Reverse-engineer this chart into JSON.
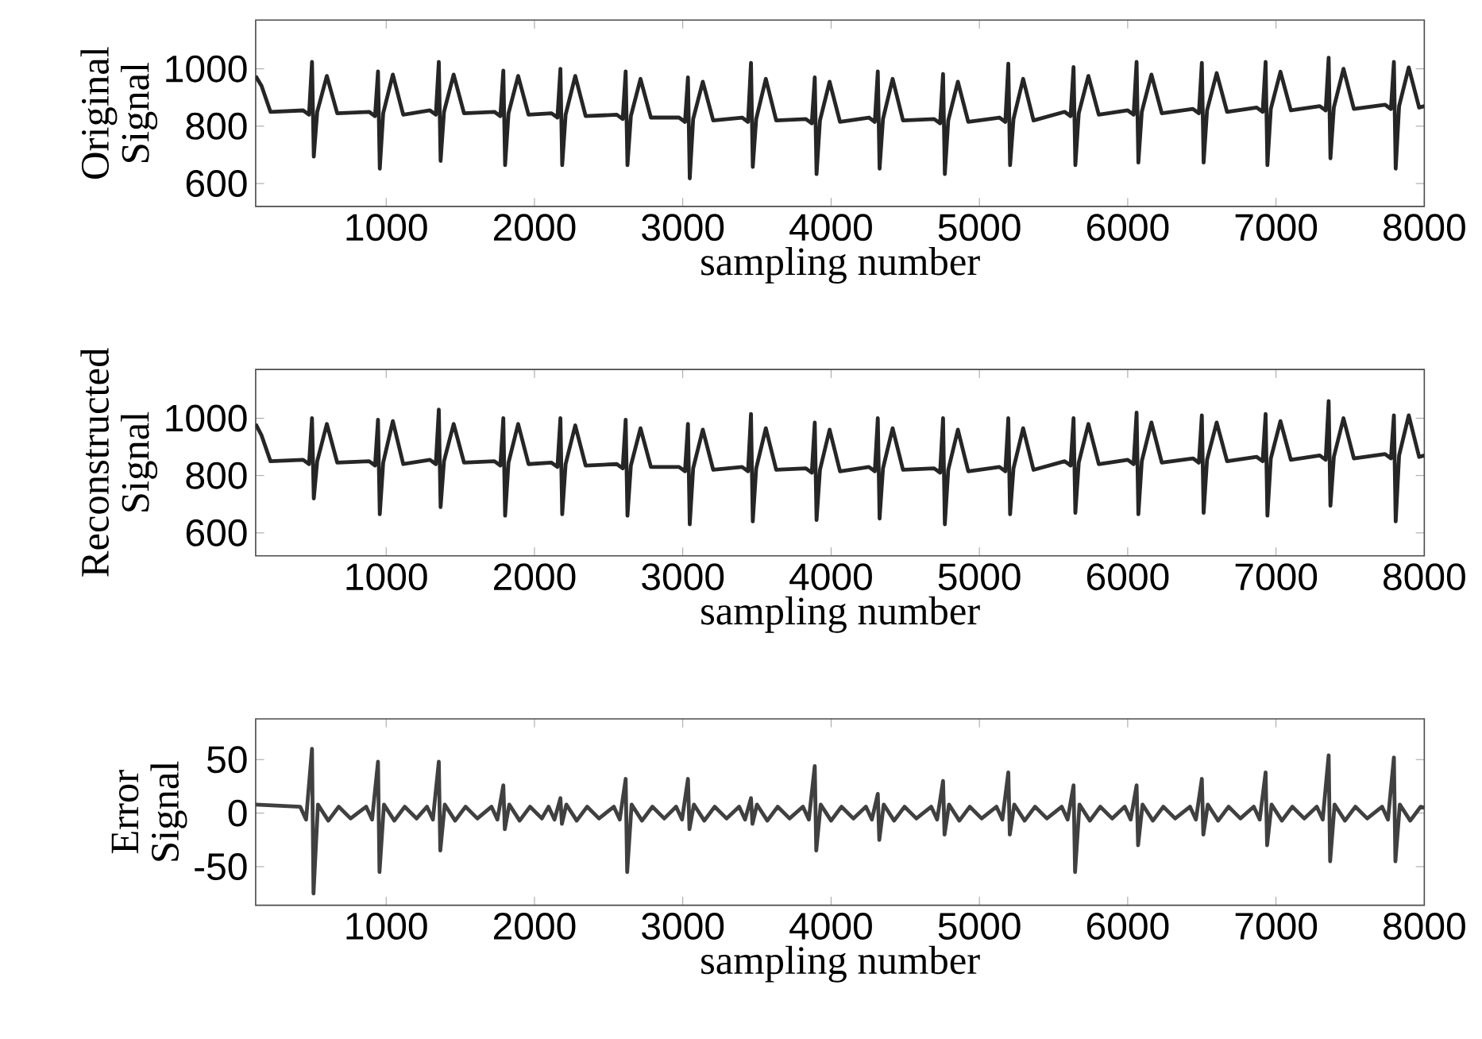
{
  "chart_data": [
    {
      "type": "line",
      "xlabel": "sampling number",
      "ylabel": "Original Signal",
      "color": "#262626",
      "xlim": [
        120,
        8000
      ],
      "ylim": [
        520,
        1170
      ],
      "xticks": [
        1000,
        2000,
        3000,
        4000,
        5000,
        6000,
        7000,
        8000
      ],
      "yticks": [
        600,
        800,
        1000
      ],
      "x": [
        120,
        160,
        220,
        440,
        480,
        500,
        512,
        535,
        600,
        670,
        885,
        925,
        945,
        957,
        980,
        1045,
        1115,
        1295,
        1335,
        1355,
        1367,
        1390,
        1455,
        1525,
        1730,
        1770,
        1790,
        1802,
        1825,
        1890,
        1960,
        2115,
        2155,
        2175,
        2187,
        2210,
        2275,
        2345,
        2555,
        2595,
        2615,
        2627,
        2650,
        2715,
        2785,
        2975,
        3015,
        3035,
        3047,
        3070,
        3135,
        3205,
        3400,
        3440,
        3460,
        3472,
        3495,
        3560,
        3630,
        3830,
        3870,
        3890,
        3902,
        3925,
        3990,
        4060,
        4255,
        4295,
        4315,
        4327,
        4350,
        4415,
        4485,
        4695,
        4735,
        4755,
        4767,
        4790,
        4855,
        4925,
        5135,
        5175,
        5195,
        5207,
        5230,
        5295,
        5365,
        5575,
        5615,
        5635,
        5647,
        5670,
        5735,
        5805,
        6000,
        6040,
        6060,
        6072,
        6095,
        6160,
        6230,
        6440,
        6480,
        6500,
        6512,
        6535,
        6600,
        6670,
        6870,
        6910,
        6930,
        6942,
        6965,
        7030,
        7100,
        7295,
        7335,
        7355,
        7367,
        7390,
        7455,
        7525,
        7735,
        7775,
        7795,
        7807,
        7830,
        7895,
        7965,
        8000
      ],
      "values": [
        975,
        940,
        850,
        855,
        840,
        1024,
        694,
        850,
        975,
        845,
        850,
        835,
        991,
        652,
        845,
        980,
        840,
        855,
        840,
        1024,
        679,
        850,
        980,
        845,
        850,
        835,
        994,
        664,
        845,
        975,
        840,
        845,
        830,
        1000,
        664,
        840,
        975,
        835,
        840,
        825,
        991,
        664,
        835,
        965,
        830,
        830,
        815,
        970,
        618,
        825,
        955,
        820,
        830,
        815,
        1021,
        658,
        825,
        965,
        820,
        825,
        810,
        970,
        633,
        820,
        955,
        815,
        830,
        815,
        991,
        652,
        825,
        965,
        820,
        825,
        810,
        982,
        633,
        820,
        955,
        815,
        830,
        815,
        1018,
        664,
        825,
        965,
        820,
        850,
        835,
        1006,
        664,
        845,
        975,
        840,
        855,
        840,
        1024,
        673,
        850,
        980,
        845,
        860,
        845,
        1021,
        673,
        855,
        985,
        850,
        865,
        850,
        1024,
        664,
        860,
        990,
        855,
        870,
        855,
        1039,
        688,
        865,
        1000,
        860,
        875,
        860,
        1024,
        652,
        870,
        1005,
        865,
        870
      ]
    },
    {
      "type": "line",
      "xlabel": "sampling number",
      "ylabel": "Reconstructed Signal",
      "color": "#262626",
      "xlim": [
        120,
        8000
      ],
      "ylim": [
        520,
        1170
      ],
      "xticks": [
        1000,
        2000,
        3000,
        4000,
        5000,
        6000,
        7000,
        8000
      ],
      "yticks": [
        600,
        800,
        1000
      ],
      "x": [
        120,
        160,
        220,
        440,
        480,
        500,
        512,
        535,
        600,
        670,
        885,
        925,
        945,
        957,
        980,
        1045,
        1115,
        1295,
        1335,
        1355,
        1367,
        1390,
        1455,
        1525,
        1730,
        1770,
        1790,
        1802,
        1825,
        1890,
        1960,
        2115,
        2155,
        2175,
        2187,
        2210,
        2275,
        2345,
        2555,
        2595,
        2615,
        2627,
        2650,
        2715,
        2785,
        2975,
        3015,
        3035,
        3047,
        3070,
        3135,
        3205,
        3400,
        3440,
        3460,
        3472,
        3495,
        3560,
        3630,
        3830,
        3870,
        3890,
        3902,
        3925,
        3990,
        4060,
        4255,
        4295,
        4315,
        4327,
        4350,
        4415,
        4485,
        4695,
        4735,
        4755,
        4767,
        4790,
        4855,
        4925,
        5135,
        5175,
        5195,
        5207,
        5230,
        5295,
        5365,
        5575,
        5615,
        5635,
        5647,
        5670,
        5735,
        5805,
        6000,
        6040,
        6060,
        6072,
        6095,
        6160,
        6230,
        6440,
        6480,
        6500,
        6512,
        6535,
        6600,
        6670,
        6870,
        6910,
        6930,
        6942,
        6965,
        7030,
        7100,
        7295,
        7335,
        7355,
        7367,
        7390,
        7455,
        7525,
        7735,
        7775,
        7795,
        7807,
        7830,
        7895,
        7965,
        8000
      ],
      "values": [
        980,
        940,
        850,
        855,
        840,
        1000,
        720,
        850,
        980,
        845,
        850,
        835,
        995,
        665,
        845,
        990,
        840,
        855,
        840,
        1030,
        690,
        850,
        980,
        845,
        850,
        835,
        1000,
        660,
        845,
        980,
        840,
        845,
        830,
        1000,
        665,
        840,
        975,
        835,
        840,
        825,
        995,
        660,
        835,
        965,
        830,
        830,
        815,
        980,
        630,
        825,
        960,
        820,
        830,
        815,
        1015,
        640,
        825,
        965,
        820,
        825,
        810,
        985,
        645,
        820,
        960,
        815,
        830,
        815,
        1000,
        650,
        825,
        965,
        820,
        825,
        810,
        1000,
        630,
        820,
        960,
        815,
        830,
        815,
        1000,
        665,
        825,
        965,
        820,
        850,
        835,
        1000,
        670,
        845,
        980,
        840,
        855,
        840,
        1020,
        665,
        850,
        985,
        845,
        860,
        845,
        1010,
        670,
        855,
        985,
        850,
        865,
        850,
        1015,
        660,
        860,
        990,
        855,
        870,
        855,
        1060,
        695,
        865,
        1000,
        860,
        875,
        860,
        1010,
        640,
        870,
        1010,
        865,
        870
      ]
    },
    {
      "type": "line",
      "xlabel": "sampling number",
      "ylabel": "Error Signal",
      "color": "#404040",
      "xlim": [
        120,
        8000
      ],
      "ylim": [
        -86,
        88
      ],
      "xticks": [
        1000,
        2000,
        3000,
        4000,
        5000,
        6000,
        7000,
        8000
      ],
      "yticks": [
        -50,
        0,
        50
      ],
      "x": [
        120,
        420,
        460,
        500,
        510,
        540,
        610,
        680,
        760,
        865,
        905,
        945,
        955,
        985,
        1055,
        1125,
        1205,
        1275,
        1315,
        1355,
        1365,
        1395,
        1465,
        1535,
        1615,
        1710,
        1750,
        1790,
        1800,
        1830,
        1900,
        1970,
        2050,
        2095,
        2135,
        2175,
        2185,
        2215,
        2285,
        2355,
        2435,
        2535,
        2575,
        2615,
        2625,
        2655,
        2725,
        2795,
        2875,
        2955,
        2995,
        3035,
        3045,
        3075,
        3145,
        3215,
        3295,
        3380,
        3420,
        3460,
        3470,
        3500,
        3570,
        3640,
        3720,
        3810,
        3850,
        3890,
        3900,
        3930,
        4000,
        4070,
        4150,
        4235,
        4275,
        4315,
        4325,
        4355,
        4425,
        4495,
        4575,
        4675,
        4715,
        4755,
        4765,
        4795,
        4865,
        4935,
        5015,
        5115,
        5155,
        5195,
        5205,
        5235,
        5305,
        5375,
        5455,
        5555,
        5595,
        5635,
        5645,
        5675,
        5745,
        5815,
        5895,
        5980,
        6020,
        6060,
        6070,
        6100,
        6170,
        6240,
        6320,
        6420,
        6460,
        6500,
        6510,
        6540,
        6610,
        6680,
        6760,
        6850,
        6890,
        6930,
        6940,
        6970,
        7040,
        7110,
        7190,
        7275,
        7315,
        7355,
        7365,
        7395,
        7465,
        7535,
        7615,
        7715,
        7755,
        7795,
        7805,
        7835,
        7905,
        7975,
        8000
      ],
      "values": [
        8,
        6,
        -6,
        60,
        -75,
        8,
        -7,
        6,
        -5,
        6,
        -6,
        48,
        -55,
        8,
        -7,
        6,
        -5,
        6,
        -6,
        48,
        -35,
        8,
        -7,
        6,
        -5,
        6,
        -6,
        26,
        -15,
        8,
        -7,
        6,
        -5,
        6,
        -6,
        14,
        -10,
        8,
        -7,
        6,
        -5,
        6,
        -6,
        32,
        -55,
        8,
        -7,
        6,
        -5,
        6,
        -6,
        32,
        -15,
        8,
        -7,
        6,
        -5,
        6,
        -6,
        14,
        -10,
        8,
        -7,
        6,
        -5,
        6,
        -6,
        44,
        -35,
        8,
        -7,
        6,
        -5,
        6,
        -6,
        18,
        -25,
        8,
        -7,
        6,
        -5,
        6,
        -6,
        30,
        -20,
        8,
        -7,
        6,
        -5,
        6,
        -6,
        38,
        -20,
        8,
        -7,
        6,
        -5,
        6,
        -6,
        26,
        -55,
        8,
        -7,
        6,
        -5,
        6,
        -6,
        26,
        -30,
        8,
        -7,
        6,
        -5,
        6,
        -6,
        32,
        -20,
        8,
        -7,
        6,
        -5,
        6,
        -6,
        38,
        -30,
        8,
        -7,
        6,
        -5,
        6,
        -6,
        54,
        -45,
        8,
        -7,
        6,
        -5,
        6,
        -6,
        52,
        -45,
        8,
        -7,
        6,
        5
      ]
    }
  ]
}
